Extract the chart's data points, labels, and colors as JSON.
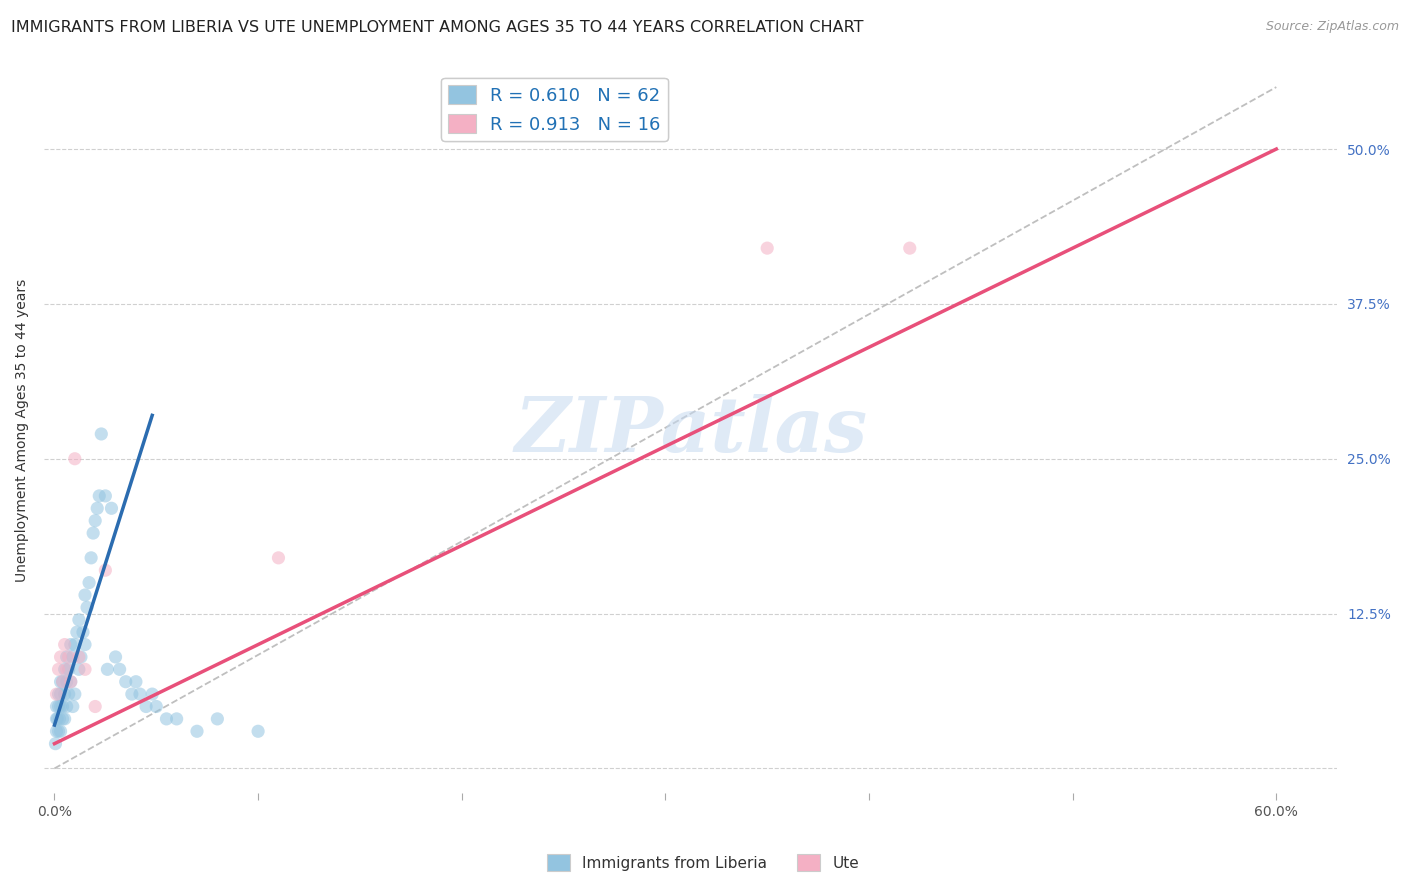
{
  "title": "IMMIGRANTS FROM LIBERIA VS UTE UNEMPLOYMENT AMONG AGES 35 TO 44 YEARS CORRELATION CHART",
  "source": "Source: ZipAtlas.com",
  "ylabel": "Unemployment Among Ages 35 to 44 years",
  "xlim": [
    -0.005,
    0.63
  ],
  "ylim": [
    -0.02,
    0.565
  ],
  "xtick_positions": [
    0.0,
    0.1,
    0.2,
    0.3,
    0.4,
    0.5,
    0.6
  ],
  "xticklabels": [
    "0.0%",
    "",
    "",
    "",
    "",
    "",
    "60.0%"
  ],
  "ytick_positions": [
    0.0,
    0.125,
    0.25,
    0.375,
    0.5
  ],
  "ytick_labels": [
    "",
    "12.5%",
    "25.0%",
    "37.5%",
    "50.0%"
  ],
  "watermark": "ZIPatlas",
  "blue_color": "#93c4e0",
  "pink_color": "#f4b0c4",
  "blue_line_color": "#2b6cb0",
  "pink_line_color": "#e8507a",
  "right_ytick_color": "#4472c4",
  "bg_color": "#ffffff",
  "grid_color": "#d0d0d0",
  "title_fontsize": 11.5,
  "axis_label_fontsize": 10,
  "tick_fontsize": 10,
  "watermark_fontsize": 55,
  "scatter_size": 90,
  "scatter_alpha": 0.55,
  "legend_labels_bottom": [
    "Immigrants from Liberia",
    "Ute"
  ],
  "blue_line_x": [
    0.0,
    0.048
  ],
  "blue_line_y": [
    0.035,
    0.285
  ],
  "pink_line_x": [
    0.0,
    0.6
  ],
  "pink_line_y": [
    0.02,
    0.5
  ],
  "ref_line_x": [
    0.0,
    0.6
  ],
  "ref_line_y": [
    0.0,
    0.55
  ],
  "blue_x": [
    0.0005,
    0.001,
    0.001,
    0.001,
    0.0015,
    0.002,
    0.002,
    0.002,
    0.0025,
    0.003,
    0.003,
    0.003,
    0.003,
    0.004,
    0.004,
    0.004,
    0.005,
    0.005,
    0.005,
    0.006,
    0.006,
    0.006,
    0.007,
    0.007,
    0.008,
    0.008,
    0.009,
    0.009,
    0.01,
    0.01,
    0.011,
    0.012,
    0.012,
    0.013,
    0.014,
    0.015,
    0.015,
    0.016,
    0.017,
    0.018,
    0.019,
    0.02,
    0.021,
    0.022,
    0.023,
    0.025,
    0.026,
    0.028,
    0.03,
    0.032,
    0.035,
    0.038,
    0.04,
    0.042,
    0.045,
    0.048,
    0.05,
    0.055,
    0.06,
    0.07,
    0.08,
    0.1
  ],
  "blue_y": [
    0.02,
    0.03,
    0.04,
    0.05,
    0.04,
    0.03,
    0.05,
    0.06,
    0.04,
    0.03,
    0.05,
    0.06,
    0.07,
    0.04,
    0.05,
    0.07,
    0.04,
    0.06,
    0.08,
    0.05,
    0.07,
    0.09,
    0.06,
    0.08,
    0.07,
    0.1,
    0.05,
    0.09,
    0.06,
    0.1,
    0.11,
    0.08,
    0.12,
    0.09,
    0.11,
    0.1,
    0.14,
    0.13,
    0.15,
    0.17,
    0.19,
    0.2,
    0.21,
    0.22,
    0.27,
    0.22,
    0.08,
    0.21,
    0.09,
    0.08,
    0.07,
    0.06,
    0.07,
    0.06,
    0.05,
    0.06,
    0.05,
    0.04,
    0.04,
    0.03,
    0.04,
    0.03
  ],
  "pink_x": [
    0.001,
    0.002,
    0.003,
    0.004,
    0.005,
    0.006,
    0.007,
    0.008,
    0.01,
    0.012,
    0.015,
    0.02,
    0.025,
    0.11,
    0.35,
    0.42
  ],
  "pink_y": [
    0.06,
    0.08,
    0.09,
    0.07,
    0.1,
    0.08,
    0.09,
    0.07,
    0.25,
    0.09,
    0.08,
    0.05,
    0.16,
    0.17,
    0.42,
    0.42
  ]
}
